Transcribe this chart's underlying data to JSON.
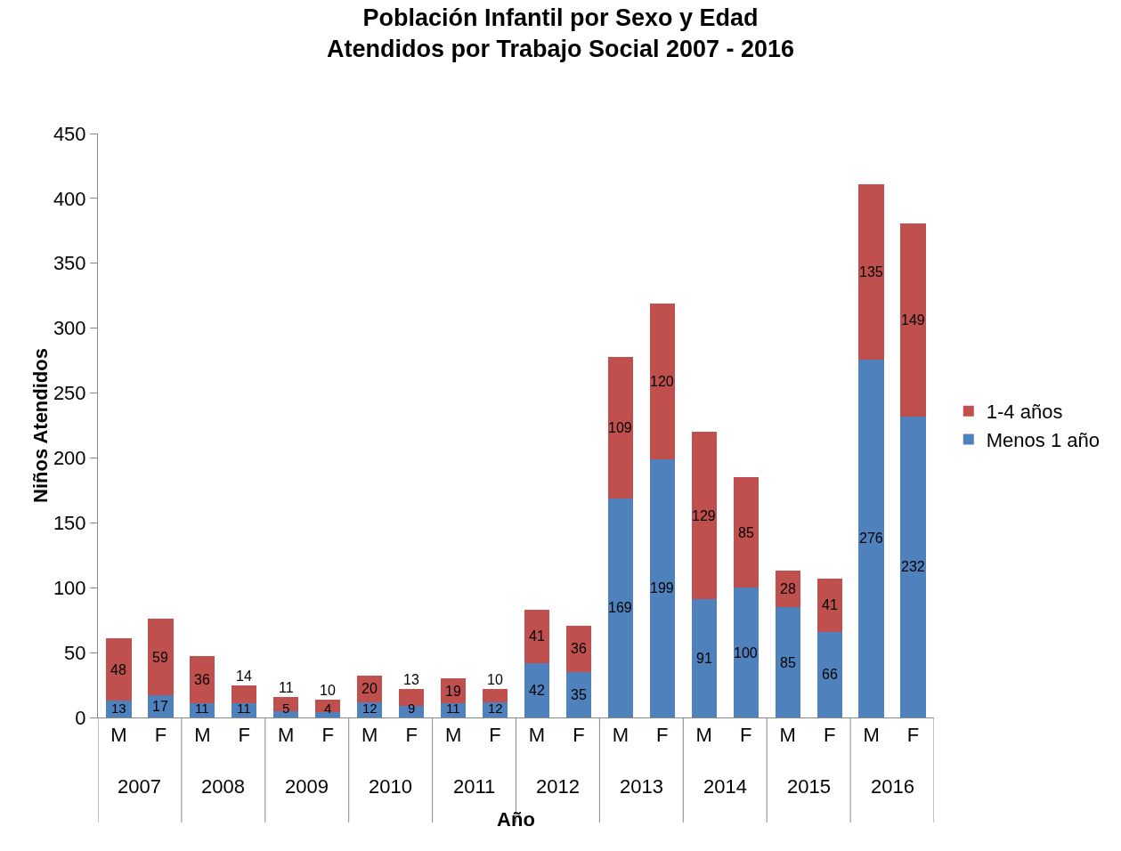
{
  "chart_data": {
    "type": "bar",
    "title": "Población Infantil por Sexo y Edad\nAtendidos por Trabajo Social 2007 - 2016",
    "xlabel": "Año",
    "ylabel": "Niños Atendidos",
    "categories": [
      "M",
      "F",
      "M",
      "F",
      "M",
      "F",
      "M",
      "F",
      "M",
      "F",
      "M",
      "F",
      "M",
      "F",
      "M",
      "F",
      "M",
      "F",
      "M",
      "F"
    ],
    "annotations": [
      "2007",
      "2008",
      "2009",
      "2010",
      "2011",
      "2012",
      "2013",
      "2014",
      "2015",
      "2016"
    ],
    "series": [
      {
        "name": "Menos 1 año",
        "color": "#4f81bd",
        "values": [
          13,
          17,
          11,
          11,
          5,
          4,
          12,
          9,
          11,
          12,
          42,
          35,
          169,
          199,
          91,
          100,
          85,
          66,
          276,
          232
        ]
      },
      {
        "name": "1-4 años",
        "color": "#c0504d",
        "values": [
          48,
          59,
          36,
          14,
          11,
          10,
          20,
          13,
          19,
          10,
          41,
          36,
          109,
          120,
          129,
          85,
          28,
          41,
          135,
          149
        ]
      }
    ],
    "stacked": true,
    "data_labels": true,
    "ylim": [
      0,
      450
    ],
    "yticks": [
      0,
      50,
      100,
      150,
      200,
      250,
      300,
      350,
      400,
      450
    ],
    "grid": false,
    "legend": "right"
  }
}
